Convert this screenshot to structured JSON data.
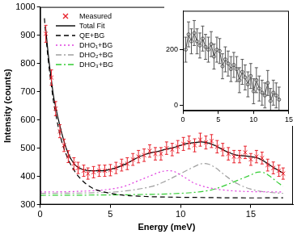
{
  "chart_data": [
    {
      "type": "line",
      "x_label": "Energy (meV)",
      "y_label": "Intensity (counts)",
      "xlim": [
        0,
        18
      ],
      "ylim": [
        300,
        1000
      ],
      "xticks": [
        0,
        5,
        10,
        15
      ],
      "yticks": [
        300,
        400,
        500,
        600,
        700,
        800,
        900,
        1000
      ],
      "grid": false,
      "legend": "upper left",
      "series": [
        {
          "name": "Measured",
          "type": "scatter",
          "color": "#e8202a",
          "marker": "x",
          "x": [
            0.4,
            0.8,
            1.1,
            1.4,
            1.7,
            2.0,
            2.4,
            2.7,
            3.1,
            3.4,
            3.8,
            4.2,
            4.6,
            5.0,
            5.4,
            5.8,
            6.2,
            6.6,
            7.0,
            7.4,
            7.8,
            8.2,
            8.6,
            9.0,
            9.4,
            9.8,
            10.2,
            10.6,
            11.0,
            11.4,
            11.8,
            12.2,
            12.6,
            13.0,
            13.4,
            13.8,
            14.2,
            14.6,
            15.0,
            15.4,
            15.8,
            16.2,
            16.6,
            17.0,
            17.3
          ],
          "values": [
            905,
            750,
            640,
            560,
            510,
            470,
            445,
            430,
            420,
            410,
            415,
            420,
            420,
            422,
            430,
            440,
            445,
            460,
            470,
            475,
            490,
            480,
            480,
            500,
            495,
            505,
            515,
            520,
            510,
            530,
            520,
            525,
            505,
            495,
            480,
            470,
            470,
            485,
            460,
            470,
            465,
            440,
            430,
            420,
            410
          ],
          "errors": [
            30,
            27,
            25,
            23,
            22,
            21,
            21,
            20,
            20,
            20,
            20,
            20,
            20,
            20,
            20,
            21,
            21,
            21,
            22,
            22,
            22,
            22,
            22,
            22,
            22,
            22,
            23,
            23,
            23,
            23,
            23,
            23,
            22,
            22,
            22,
            22,
            22,
            22,
            21,
            22,
            21,
            21,
            21,
            20,
            20
          ]
        },
        {
          "name": "Total Fit",
          "color": "#000000",
          "line_style": "solid",
          "x": [
            0.4,
            0.6,
            0.8,
            1.0,
            1.5,
            2.0,
            2.5,
            3.0,
            3.5,
            4.0,
            4.5,
            5.0,
            5.5,
            6.0,
            6.5,
            7.0,
            7.5,
            8.0,
            8.5,
            9.0,
            9.5,
            10.0,
            10.5,
            11.0,
            11.5,
            12.0,
            12.5,
            13.0,
            13.5,
            14.0,
            14.5,
            15.0,
            15.5,
            16.0,
            16.5,
            17.0,
            17.3
          ],
          "values": [
            920,
            820,
            740,
            670,
            560,
            480,
            440,
            425,
            420,
            420,
            420,
            425,
            432,
            442,
            455,
            468,
            478,
            485,
            490,
            497,
            502,
            510,
            517,
            520,
            522,
            518,
            508,
            495,
            483,
            475,
            473,
            470,
            465,
            452,
            435,
            420,
            412
          ]
        },
        {
          "name": "QE+BG",
          "color": "#000000",
          "line_style": "dashed",
          "x": [
            0.3,
            0.4,
            0.6,
            0.8,
            1.0,
            1.5,
            2.0,
            2.5,
            3.0,
            3.5,
            4.0,
            5.0,
            6.0,
            7.0,
            8.0,
            10.0,
            12.0,
            14.0,
            17.3
          ],
          "values": [
            960,
            900,
            800,
            720,
            650,
            530,
            460,
            415,
            385,
            365,
            352,
            340,
            333,
            330,
            328,
            326,
            325,
            324,
            324
          ]
        },
        {
          "name": "DHO₁+BG",
          "color": "#e040e0",
          "line_style": "dotted",
          "x": [
            0,
            2,
            4,
            5,
            6,
            7,
            8,
            8.5,
            9,
            9.5,
            10,
            10.5,
            11,
            12,
            13,
            14,
            15,
            17.3
          ],
          "values": [
            345,
            346,
            350,
            355,
            365,
            385,
            405,
            415,
            420,
            418,
            405,
            390,
            375,
            360,
            352,
            348,
            346,
            345
          ]
        },
        {
          "name": "DHO₂+BG",
          "color": "#a0a0a0",
          "line_style": "dashdot",
          "x": [
            0,
            4,
            6,
            8,
            9,
            10,
            11,
            11.5,
            12,
            12.5,
            13,
            14,
            15,
            16,
            17.3
          ],
          "values": [
            340,
            342,
            348,
            365,
            385,
            410,
            435,
            445,
            443,
            430,
            410,
            375,
            355,
            345,
            340
          ]
        },
        {
          "name": "DHO₃+BG",
          "color": "#33cc33",
          "line_style": "dashdot",
          "x": [
            0,
            6,
            10,
            12,
            13,
            14,
            15,
            15.5,
            16,
            16.5,
            17,
            17.3
          ],
          "values": [
            333,
            335,
            340,
            350,
            365,
            385,
            405,
            415,
            412,
            395,
            375,
            365
          ]
        }
      ]
    },
    {
      "type": "line",
      "xlim": [
        0,
        15
      ],
      "ylim": [
        -20,
        340
      ],
      "xticks": [
        0,
        5,
        10,
        15
      ],
      "yticks": [
        0,
        200
      ],
      "grid": false,
      "series": [
        {
          "color": "#555555",
          "marker": "circle",
          "line_style": "solid",
          "x": [
            0.4,
            0.8,
            1.2,
            1.6,
            2.0,
            2.4,
            2.8,
            3.2,
            3.6,
            4.0,
            4.4,
            4.8,
            5.2,
            5.6,
            6.0,
            6.4,
            6.8,
            7.2,
            7.6,
            8.0,
            8.4,
            8.8,
            9.2,
            9.6,
            10.0,
            10.4,
            10.8,
            11.2,
            11.6,
            12.0,
            12.4,
            12.8,
            13.2,
            13.6
          ],
          "values": [
            200,
            255,
            230,
            260,
            230,
            215,
            240,
            210,
            200,
            220,
            175,
            200,
            195,
            140,
            165,
            150,
            130,
            145,
            130,
            90,
            120,
            100,
            75,
            105,
            50,
            90,
            60,
            45,
            35,
            80,
            15,
            45,
            35,
            20
          ],
          "errors": [
            45,
            45,
            45,
            45,
            45,
            45,
            45,
            45,
            45,
            45,
            45,
            45,
            45,
            45,
            45,
            45,
            45,
            45,
            45,
            45,
            45,
            45,
            45,
            45,
            45,
            45,
            45,
            45,
            45,
            45,
            45,
            45,
            45,
            45
          ]
        }
      ]
    }
  ]
}
